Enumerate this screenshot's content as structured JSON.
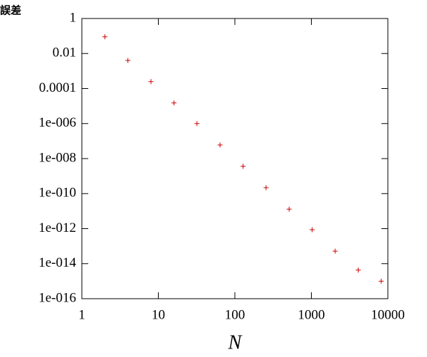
{
  "chart_data": {
    "type": "scatter",
    "x_label": "N",
    "y_label": "誤差",
    "x": [
      2,
      4,
      8,
      16,
      32,
      64,
      128,
      256,
      512,
      1024,
      2048,
      4096,
      8192
    ],
    "values": [
      0.09,
      0.004,
      0.00025,
      1.5e-05,
      1e-06,
      6e-08,
      3.6e-09,
      2.2e-10,
      1.3e-11,
      8.7e-13,
      5.2e-14,
      4.3e-15,
      1e-15
    ],
    "color": "#cc0000",
    "log_x": true,
    "log_y": true,
    "xlim": [
      1,
      10000
    ],
    "xticks": [
      1,
      10,
      100,
      1000,
      10000
    ],
    "ylim": [
      1e-16,
      1
    ],
    "yticks": [
      1,
      0.01,
      0.0001,
      {
        "value": 1e-06,
        "label": "1e-006"
      },
      {
        "value": 1e-08,
        "label": "1e-008"
      },
      {
        "value": 1e-10,
        "label": "1e-010"
      },
      {
        "value": 1e-12,
        "label": "1e-012"
      },
      {
        "value": 1e-14,
        "label": "1e-014"
      },
      {
        "value": 1e-16,
        "label": "1e-016"
      }
    ]
  }
}
